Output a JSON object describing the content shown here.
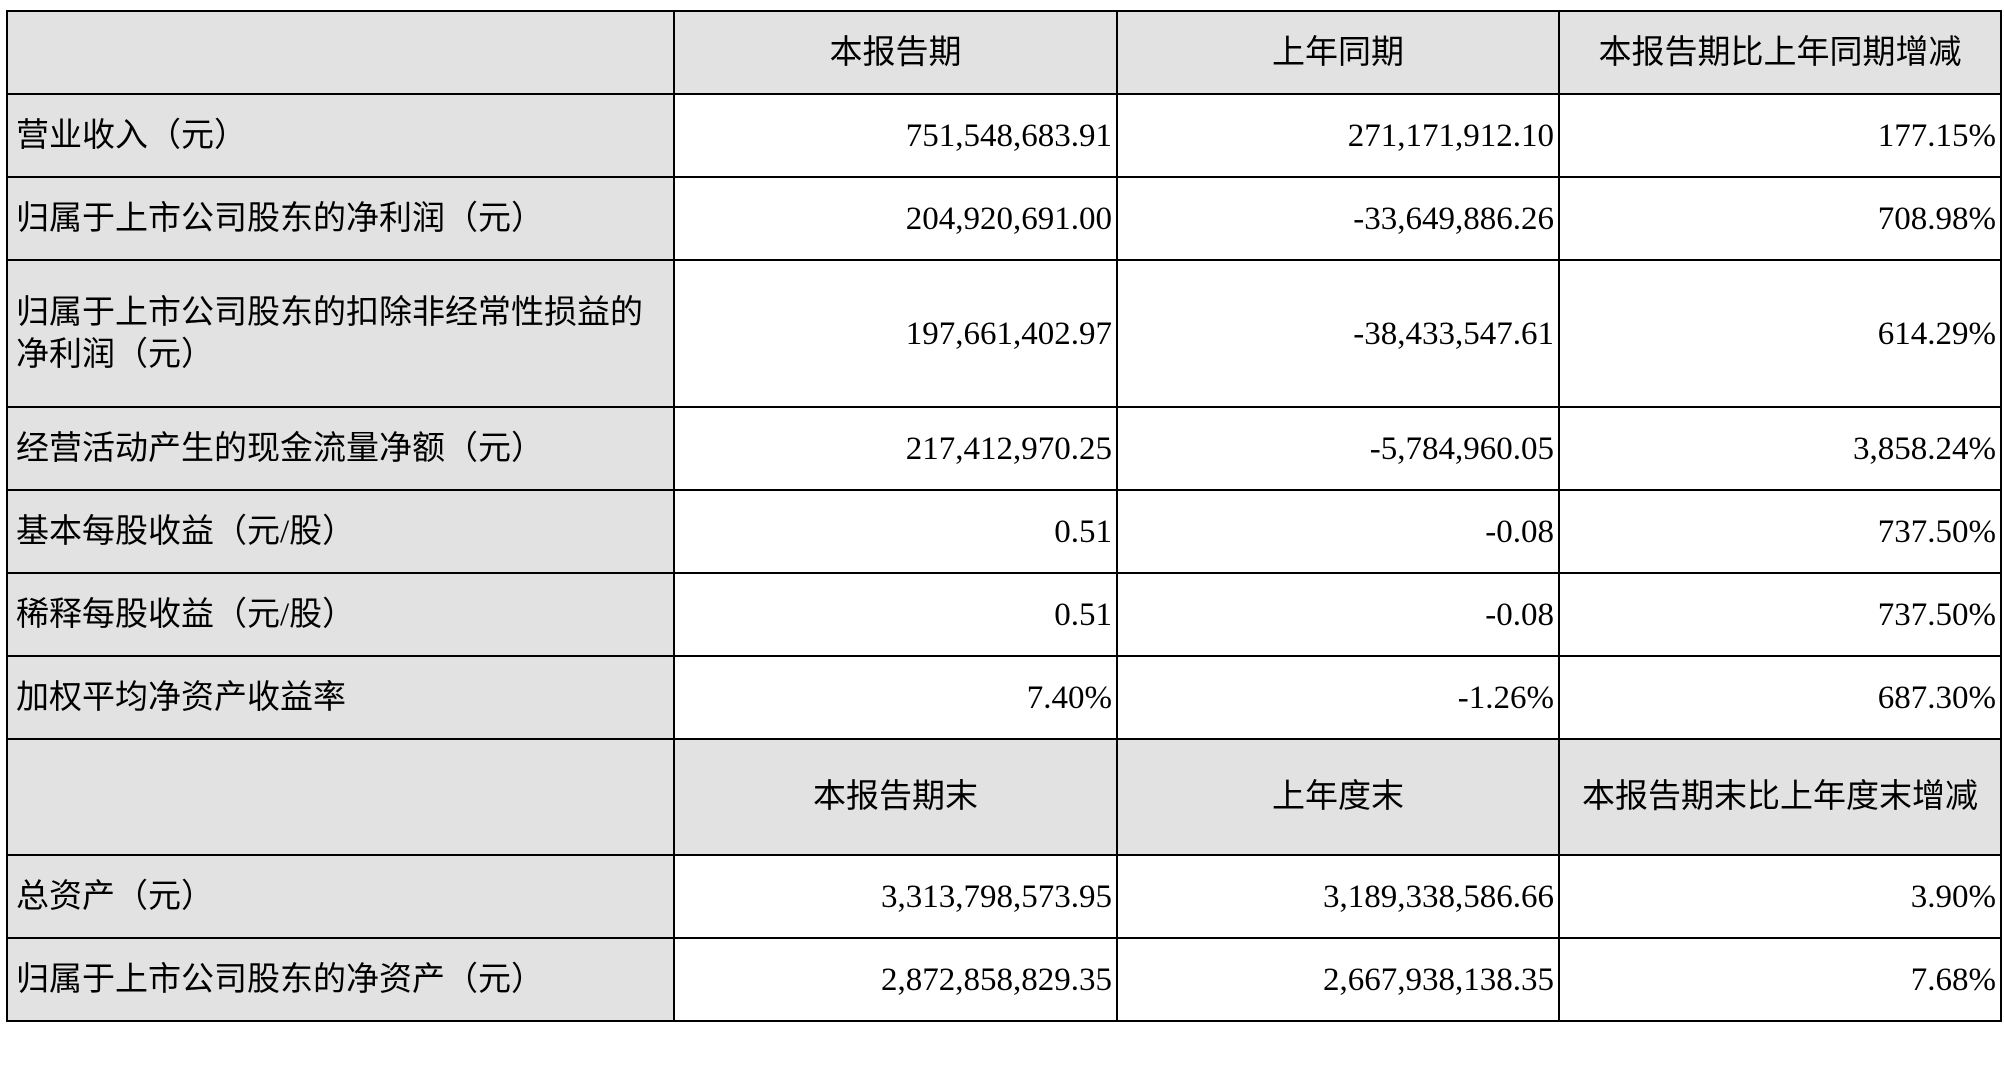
{
  "header1": [
    "",
    "本报告期",
    "上年同期",
    "本报告期比上年同期增减"
  ],
  "rows1": [
    [
      "营业收入（元）",
      "751,548,683.91",
      "271,171,912.10",
      "177.15%"
    ],
    [
      "归属于上市公司股东的净利润（元）",
      "204,920,691.00",
      "-33,649,886.26",
      "708.98%"
    ],
    [
      "归属于上市公司股东的扣除非经常性损益的净利润（元）",
      "197,661,402.97",
      "-38,433,547.61",
      "614.29%"
    ],
    [
      "经营活动产生的现金流量净额（元）",
      "217,412,970.25",
      "-5,784,960.05",
      "3,858.24%"
    ],
    [
      "基本每股收益（元/股）",
      "0.51",
      "-0.08",
      "737.50%"
    ],
    [
      "稀释每股收益（元/股）",
      "0.51",
      "-0.08",
      "737.50%"
    ],
    [
      "加权平均净资产收益率",
      "7.40%",
      "-1.26%",
      "687.30%"
    ]
  ],
  "header2": [
    "",
    "本报告期末",
    "上年度末",
    "本报告期末比上年度末增减"
  ],
  "rows2": [
    [
      "总资产（元）",
      "3,313,798,573.95",
      "3,189,338,586.66",
      "3.90%"
    ],
    [
      "归属于上市公司股东的净资产（元）",
      "2,872,858,829.35",
      "2,667,938,138.35",
      "7.68%"
    ]
  ]
}
